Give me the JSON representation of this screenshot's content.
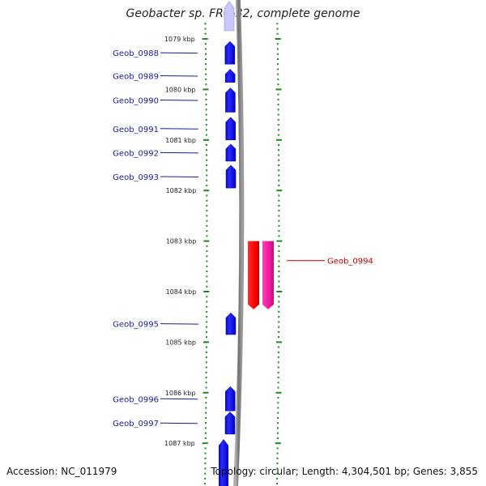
{
  "title": "Geobacter sp. FRC-32, complete genome",
  "footer": {
    "accession": "Accession: NC_011979",
    "summary": "Topology: circular; Length: 4,304,501 bp; Genes: 3,855"
  },
  "colors": {
    "forward_gene": "#1010e8",
    "reverse_gene_outer": "#ff0000",
    "reverse_gene_inner": "#ee1aa0",
    "forward_label": "#1a1aa8",
    "reverse_label": "#cc0000",
    "tick_marks": "#1a8a1a",
    "backbone": "#888888"
  },
  "scale_ticks": [
    {
      "kbp": 1079,
      "label": "1079 kbp"
    },
    {
      "kbp": 1080,
      "label": "1080 kbp"
    },
    {
      "kbp": 1081,
      "label": "1081 kbp"
    },
    {
      "kbp": 1082,
      "label": "1082 kbp"
    },
    {
      "kbp": 1083,
      "label": "1083 kbp"
    },
    {
      "kbp": 1084,
      "label": "1084 kbp"
    },
    {
      "kbp": 1085,
      "label": "1085 kbp"
    },
    {
      "kbp": 1086,
      "label": "1086 kbp"
    },
    {
      "kbp": 1087,
      "label": "1087 kbp"
    }
  ],
  "genes": [
    {
      "name": "Geob_0988",
      "strand": "+",
      "start_kbp": 1079.05,
      "end_kbp": 1079.5
    },
    {
      "name": "Geob_0989",
      "strand": "+",
      "start_kbp": 1079.6,
      "end_kbp": 1079.86
    },
    {
      "name": "Geob_0990",
      "strand": "+",
      "start_kbp": 1079.97,
      "end_kbp": 1080.45
    },
    {
      "name": "Geob_0991",
      "strand": "+",
      "start_kbp": 1080.55,
      "end_kbp": 1081.0
    },
    {
      "name": "Geob_0992",
      "strand": "+",
      "start_kbp": 1081.08,
      "end_kbp": 1081.42
    },
    {
      "name": "Geob_0993",
      "strand": "+",
      "start_kbp": 1081.5,
      "end_kbp": 1081.95
    },
    {
      "name": "Geob_0994",
      "strand": "-",
      "start_kbp": 1083.0,
      "end_kbp": 1084.35
    },
    {
      "name": "Geob_0995",
      "strand": "+",
      "start_kbp": 1084.42,
      "end_kbp": 1084.85
    },
    {
      "name": "Geob_0996",
      "strand": "+",
      "start_kbp": 1085.88,
      "end_kbp": 1086.36
    },
    {
      "name": "Geob_0997",
      "strand": "+",
      "start_kbp": 1086.38,
      "end_kbp": 1086.82
    }
  ]
}
